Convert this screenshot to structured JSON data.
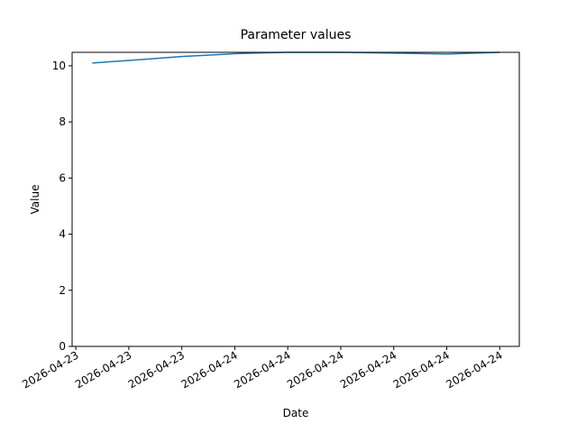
{
  "chart_data": {
    "type": "line",
    "title": "Parameter values",
    "x_label": "Date",
    "y_label": "Value",
    "x": [
      0.31,
      1,
      1.5,
      2,
      3,
      3.5,
      4,
      5,
      6,
      7,
      8
    ],
    "series": [
      {
        "name": "Value",
        "color": "#1f77b4",
        "values": [
          10.1,
          10.19,
          10.26,
          10.33,
          10.43,
          10.46,
          10.48,
          10.48,
          10.45,
          10.42,
          10.48
        ]
      }
    ],
    "xlim": [
      -0.07,
      8.37
    ],
    "xticks": [
      {
        "value": 0,
        "label": "2026-04-23"
      },
      {
        "value": 1,
        "label": "2026-04-23"
      },
      {
        "value": 2,
        "label": "2026-04-23"
      },
      {
        "value": 3,
        "label": "2026-04-24"
      },
      {
        "value": 4,
        "label": "2026-04-24"
      },
      {
        "value": 5,
        "label": "2026-04-24"
      },
      {
        "value": 6,
        "label": "2026-04-24"
      },
      {
        "value": 7,
        "label": "2026-04-24"
      },
      {
        "value": 8,
        "label": "2026-04-24"
      }
    ],
    "ylim": [
      0,
      10.48
    ],
    "yticks": [
      0,
      2,
      4,
      6,
      8,
      10
    ],
    "grid": false
  }
}
